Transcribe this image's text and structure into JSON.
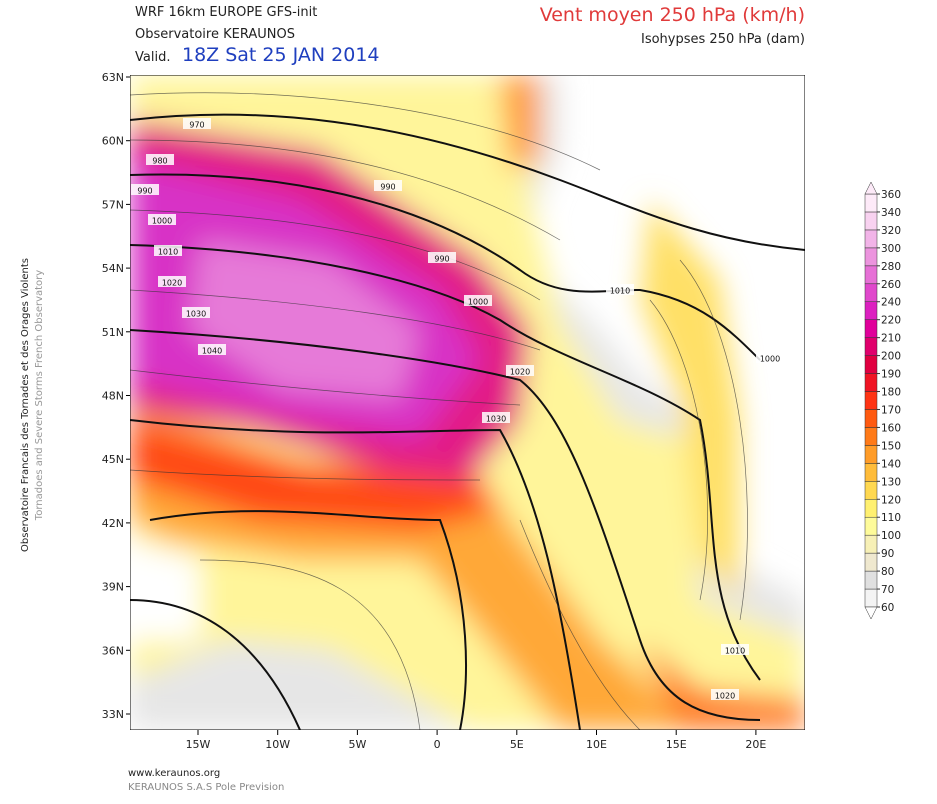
{
  "header": {
    "model": "WRF 16km EUROPE  GFS-init",
    "observatory": "Observatoire KERAUNOS",
    "valid_prefix": "Valid.",
    "valid_time": "18Z Sat 25 JAN 2014",
    "title": "Vent moyen 250 hPa (km/h)",
    "subtitle": "Isohypses 250 hPa (dam)"
  },
  "side_text": [
    "Observatoire Francais des Tornades et des Orages Violents",
    "Tornadoes and Severe Storms French Observatory"
  ],
  "map": {
    "lat_labels": [
      "63N",
      "60N",
      "57N",
      "54N",
      "51N",
      "48N",
      "45N",
      "42N",
      "39N",
      "36N",
      "33N"
    ],
    "lon_labels": [
      "15W",
      "10W",
      "5W",
      "0",
      "5E",
      "10E",
      "15E",
      "20E"
    ],
    "contour_labels": [
      "970",
      "980",
      "990",
      "1000",
      "1010",
      "1020",
      "1030",
      "1040",
      "990",
      "990",
      "1000",
      "1010",
      "1020",
      "1030",
      "1000",
      "1010",
      "1020"
    ]
  },
  "legend": {
    "levels": [
      60,
      70,
      80,
      90,
      100,
      110,
      120,
      130,
      140,
      150,
      160,
      170,
      180,
      190,
      200,
      210,
      220,
      240,
      260,
      280,
      300,
      320,
      340,
      360
    ],
    "colors": [
      "#f4f4f4",
      "#e0e0e0",
      "#efe8cf",
      "#f7f0b6",
      "#fefb9a",
      "#fff070",
      "#ffd850",
      "#ffbc3a",
      "#ff9c28",
      "#ff7a18",
      "#ff5a10",
      "#ff3414",
      "#f01424",
      "#e00040",
      "#e0006c",
      "#e0009a",
      "#dc20c0",
      "#e048cc",
      "#e670d6",
      "#ec94de",
      "#f2b4e8",
      "#f8d2f0",
      "#fdeaf8"
    ]
  },
  "footer": [
    "www.keraunos.org",
    "KERAUNOS S.A.S Pole Prevision"
  ]
}
